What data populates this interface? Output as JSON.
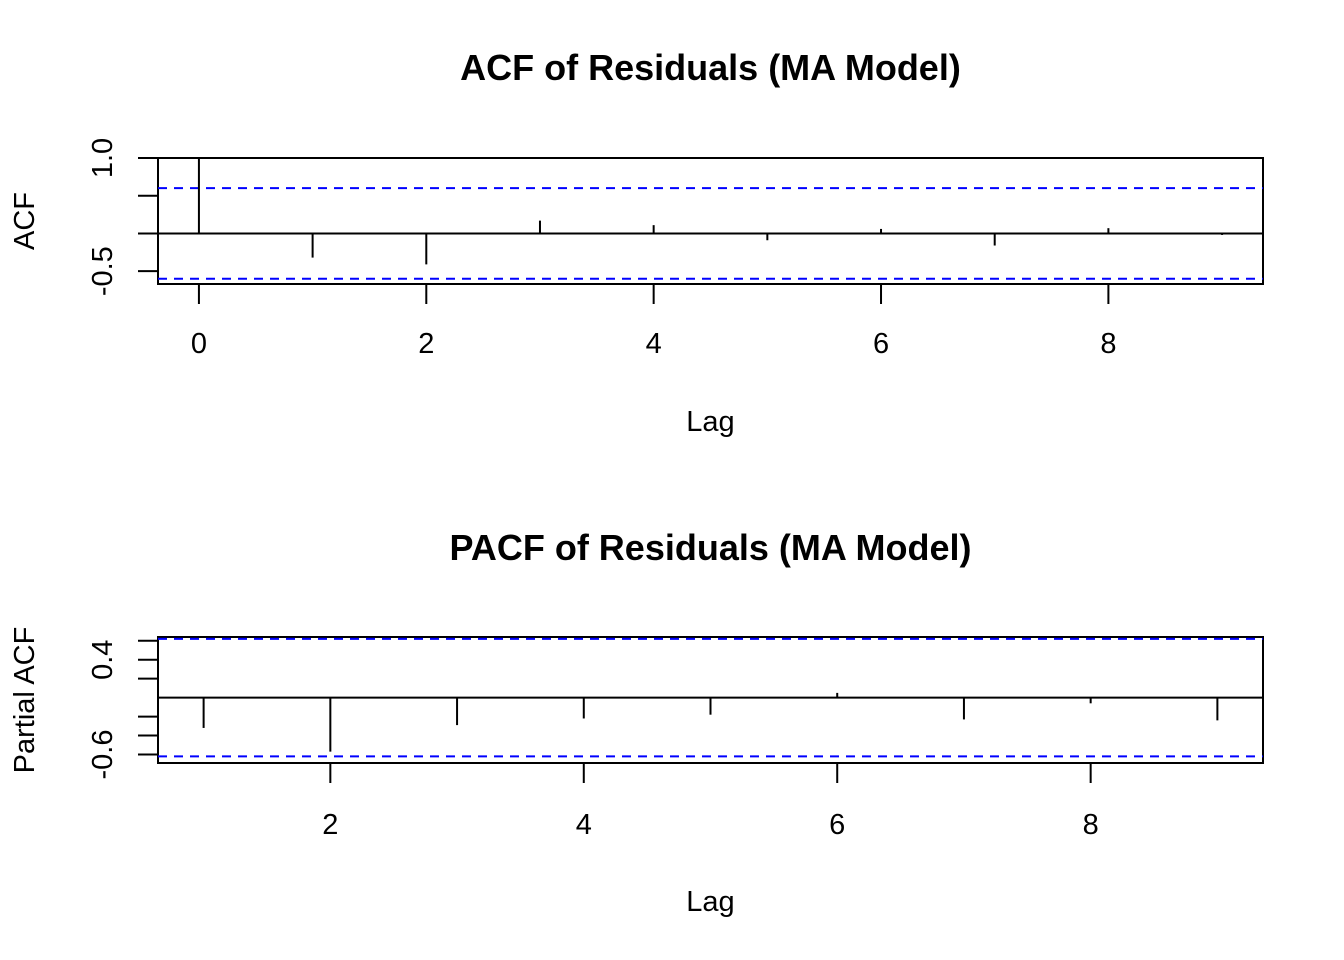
{
  "chart_data": [
    {
      "type": "bar",
      "title": "ACF of Residuals (MA Model)",
      "xlabel": "Lag",
      "ylabel": "ACF",
      "xlim": [
        -0.36,
        9.36
      ],
      "ylim": [
        -0.67,
        1.0
      ],
      "xticks": [
        0,
        2,
        4,
        6,
        8
      ],
      "xtick_labels": [
        "0",
        "2",
        "4",
        "6",
        "8"
      ],
      "yticks": [
        -0.5,
        0,
        0.5,
        1.0
      ],
      "ytick_labels": [
        "-0.5",
        "",
        "",
        "1.0"
      ],
      "x": [
        0,
        1,
        2,
        3,
        4,
        5,
        6,
        7,
        8,
        9
      ],
      "values": [
        1.0,
        -0.32,
        -0.41,
        0.17,
        0.11,
        -0.09,
        0.06,
        -0.16,
        0.07,
        -0.02
      ],
      "confidence_bound": 0.6,
      "confidence_line_color": "#0000ff",
      "grid": false
    },
    {
      "type": "bar",
      "title": "PACF of Residuals (MA Model)",
      "xlabel": "Lag",
      "ylabel": "Partial ACF",
      "xlim": [
        0.64,
        9.36
      ],
      "ylim": [
        -0.69,
        0.64
      ],
      "xticks": [
        2,
        4,
        6,
        8
      ],
      "xtick_labels": [
        "2",
        "4",
        "6",
        "8"
      ],
      "yticks": [
        -0.6,
        -0.4,
        -0.2,
        0.2,
        0.4,
        0.6
      ],
      "ytick_labels": [
        "-0.6",
        "",
        "",
        "",
        "0.4",
        ""
      ],
      "x": [
        1,
        2,
        3,
        4,
        5,
        6,
        7,
        8,
        9
      ],
      "values": [
        -0.32,
        -0.57,
        -0.29,
        -0.22,
        -0.18,
        0.05,
        -0.23,
        -0.06,
        -0.24
      ],
      "confidence_bound": 0.62,
      "confidence_line_color": "#0000ff",
      "grid": false
    }
  ]
}
